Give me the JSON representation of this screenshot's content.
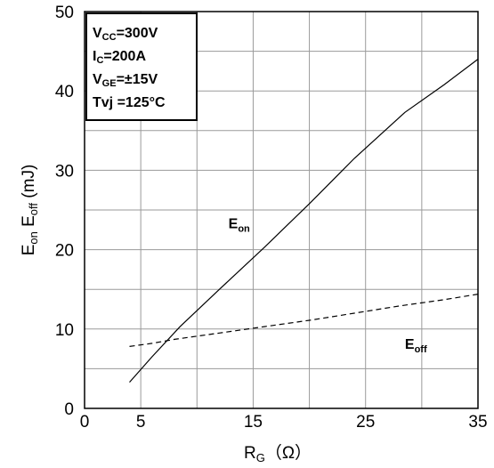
{
  "chart_data": {
    "type": "line",
    "xlabel": {
      "main": "R",
      "sub": "G",
      "unit": "（Ω）"
    },
    "ylabel": {
      "part1_main": "E",
      "part1_sub": "on",
      "part2_main": "E",
      "part2_sub": "off",
      "unit": "(mJ)"
    },
    "xlim": [
      0,
      35
    ],
    "ylim": [
      0,
      50
    ],
    "x_ticks": [
      0,
      5,
      15,
      25,
      35
    ],
    "y_ticks": [
      0,
      10,
      20,
      30,
      40,
      50
    ],
    "grid": true,
    "conditions": [
      {
        "main": "V",
        "sub": "CC",
        "value": "=300V"
      },
      {
        "main": "I",
        "sub": "C",
        "value": "=200A"
      },
      {
        "main": "V",
        "sub": "GE",
        "value": "=±15V"
      },
      {
        "main": "Tvj",
        "sub": "",
        "value": " =125°C"
      }
    ],
    "series": [
      {
        "name": "Eon",
        "label_main": "E",
        "label_sub": "on",
        "style": "solid",
        "x": [
          4,
          6,
          8.5,
          12,
          16,
          20,
          24,
          28.5,
          32,
          35
        ],
        "y": [
          3.3,
          6.5,
          10.3,
          15.0,
          20.3,
          25.8,
          31.5,
          37.3,
          40.8,
          44.0
        ]
      },
      {
        "name": "Eoff",
        "label_main": "E",
        "label_sub": "off",
        "style": "dashed",
        "x": [
          4,
          6,
          8,
          12,
          16,
          20,
          24,
          28,
          32,
          35
        ],
        "y": [
          7.8,
          8.2,
          8.7,
          9.5,
          10.3,
          11.1,
          12.0,
          12.9,
          13.7,
          14.4
        ]
      }
    ],
    "series_label_positions": [
      {
        "x": 12.8,
        "y": 22.7
      },
      {
        "x": 28.5,
        "y": 7.5
      }
    ]
  }
}
